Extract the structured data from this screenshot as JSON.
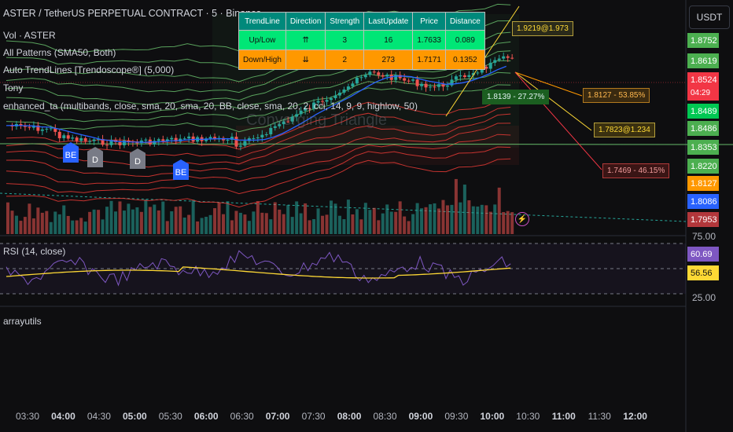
{
  "header": {
    "title": "ASTER / TetherUS PERPETUAL CONTRACT · 5 · Binance",
    "currency_button": "USDT"
  },
  "indicators": [
    "Vol · ASTER",
    "All Patterns (SMA50, Both)",
    "Auto TrendLines [Trendoscope®] (5,000)",
    "Tony",
    "enhanced_ta (multibands, close, sma, 20, sma, 20, BB, close, sma, 20, 2, cci, 14, 9, 9, highlow, 50)"
  ],
  "watermark": "Converging Triangle",
  "trend_table": {
    "headers": [
      "TrendLine",
      "Direction",
      "Strength",
      "LastUpdate",
      "Price",
      "Distance"
    ],
    "rows": [
      [
        "Up/Low",
        "⇈",
        "3",
        "16",
        "1.7633",
        "0.089"
      ],
      [
        "Down/High",
        "⇊",
        "2",
        "273",
        "1.7171",
        "0.1352"
      ]
    ]
  },
  "annotations": {
    "target_up": "1.9219@1.973",
    "pct_label": "1.8139 - 27.27%",
    "target_mid": "1.8127 - 53.85%",
    "target_low": "1.7823@1.234",
    "target_down": "1.7469 - 46.15%"
  },
  "signals": [
    {
      "label": "BE",
      "kind": "be"
    },
    {
      "label": "D",
      "kind": "d"
    },
    {
      "label": "D",
      "kind": "d"
    },
    {
      "label": "BE",
      "kind": "be"
    }
  ],
  "price_axis": [
    {
      "value": "1.8752",
      "color": "#4caf50"
    },
    {
      "value": "1.8619",
      "color": "#4caf50"
    },
    {
      "value": "1.8524",
      "color": "#f23645"
    },
    {
      "value": "04:29",
      "color": "#f23645"
    },
    {
      "value": "1.8489",
      "color": "#00c853"
    },
    {
      "value": "1.8486",
      "color": "#4caf50"
    },
    {
      "value": "1.8353",
      "color": "#4caf50"
    },
    {
      "value": "1.8220",
      "color": "#4caf50"
    },
    {
      "value": "1.8127",
      "color": "#ff9800"
    },
    {
      "value": "1.8086",
      "color": "#2962ff"
    },
    {
      "value": "1.7953",
      "color": "#b2373b"
    }
  ],
  "rsi": {
    "label": "RSI (14, close)",
    "rsi_value": "60.69",
    "ma_value": "56.56",
    "upper": "75.00",
    "lower": "25.00",
    "rsi_color": "#7e57c2",
    "ma_color": "#fdd835"
  },
  "arrayutils_label": "arrayutils",
  "time_axis": [
    {
      "label": "03:30",
      "bold": false
    },
    {
      "label": "04:00",
      "bold": true
    },
    {
      "label": "04:30",
      "bold": false
    },
    {
      "label": "05:00",
      "bold": true
    },
    {
      "label": "05:30",
      "bold": false
    },
    {
      "label": "06:00",
      "bold": true
    },
    {
      "label": "06:30",
      "bold": false
    },
    {
      "label": "07:00",
      "bold": true
    },
    {
      "label": "07:30",
      "bold": false
    },
    {
      "label": "08:00",
      "bold": true
    },
    {
      "label": "08:30",
      "bold": false
    },
    {
      "label": "09:00",
      "bold": true
    },
    {
      "label": "09:30",
      "bold": false
    },
    {
      "label": "10:00",
      "bold": true
    },
    {
      "label": "10:30",
      "bold": false
    },
    {
      "label": "11:00",
      "bold": true
    },
    {
      "label": "11:30",
      "bold": false
    },
    {
      "label": "12:00",
      "bold": true
    }
  ],
  "colors": {
    "up": "#26a69a",
    "down": "#ef5350",
    "band_green": "#66bb6a",
    "band_red": "#e53935",
    "ma_blue": "#2962ff"
  }
}
